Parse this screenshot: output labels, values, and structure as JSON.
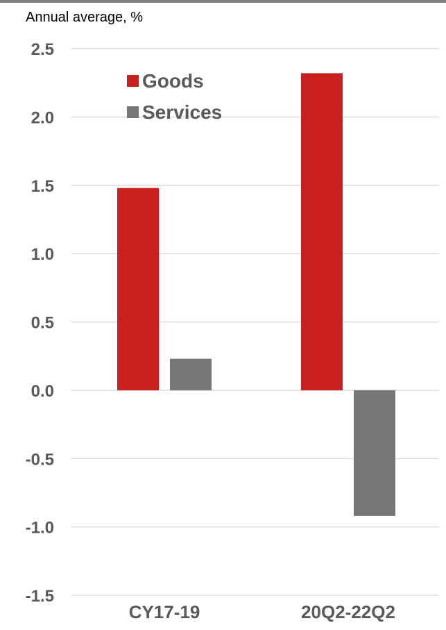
{
  "unit_label": "Annual average, %",
  "colors": {
    "goods": "#c8201e",
    "services": "#767676",
    "gridline": "#d9d9d9",
    "axis_text": "#595959",
    "top_rule": "#7f7f7f"
  },
  "chart_data": {
    "type": "bar",
    "title": "",
    "xlabel": "",
    "ylabel": "Annual average, %",
    "categories": [
      "CY17-19",
      "20Q2-22Q2"
    ],
    "series": [
      {
        "name": "Goods",
        "values": [
          1.48,
          2.32
        ],
        "color": "#c8201e"
      },
      {
        "name": "Services",
        "values": [
          0.23,
          -0.92
        ],
        "color": "#767676"
      }
    ],
    "ylim": [
      -1.5,
      2.5
    ],
    "yticks": [
      2.5,
      2.0,
      1.5,
      1.0,
      0.5,
      0.0,
      -0.5,
      -1.0,
      -1.5
    ],
    "ytick_labels": [
      "2.5",
      "2.0",
      "1.5",
      "1.0",
      "0.5",
      "0.0",
      "-0.5",
      "-1.0",
      "-1.5"
    ],
    "grid": true,
    "legend": "top-left"
  }
}
